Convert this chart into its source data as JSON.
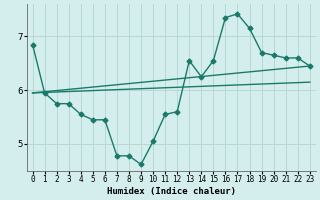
{
  "xlabel": "Humidex (Indice chaleur)",
  "ylabel": "",
  "bg_color": "#d4eeed",
  "grid_color": "#b8d8d6",
  "line_color": "#1a7a6a",
  "xlim": [
    -0.5,
    23.5
  ],
  "ylim": [
    4.5,
    7.6
  ],
  "yticks": [
    5,
    6,
    7
  ],
  "xticks": [
    0,
    1,
    2,
    3,
    4,
    5,
    6,
    7,
    8,
    9,
    10,
    11,
    12,
    13,
    14,
    15,
    16,
    17,
    18,
    19,
    20,
    21,
    22,
    23
  ],
  "series": [
    {
      "x": [
        0,
        1,
        2,
        3,
        4,
        5,
        6,
        7,
        8,
        9,
        10,
        11,
        12,
        13,
        14,
        15,
        16,
        17,
        18,
        19,
        20,
        21,
        22,
        23
      ],
      "y": [
        6.85,
        5.95,
        5.75,
        5.75,
        5.55,
        5.45,
        5.45,
        4.78,
        4.78,
        4.62,
        5.05,
        5.55,
        5.6,
        6.55,
        6.25,
        6.55,
        7.35,
        7.42,
        7.15,
        6.7,
        6.65,
        6.6,
        6.6,
        6.45
      ],
      "has_markers": true
    },
    {
      "x": [
        0,
        23
      ],
      "y": [
        5.95,
        6.45
      ],
      "has_markers": false
    },
    {
      "x": [
        0,
        23
      ],
      "y": [
        5.95,
        6.15
      ],
      "has_markers": false
    }
  ],
  "marker": "D",
  "marker_size": 2.5,
  "line_width": 1.0,
  "tick_fontsize": 5.5,
  "xlabel_fontsize": 6.5
}
